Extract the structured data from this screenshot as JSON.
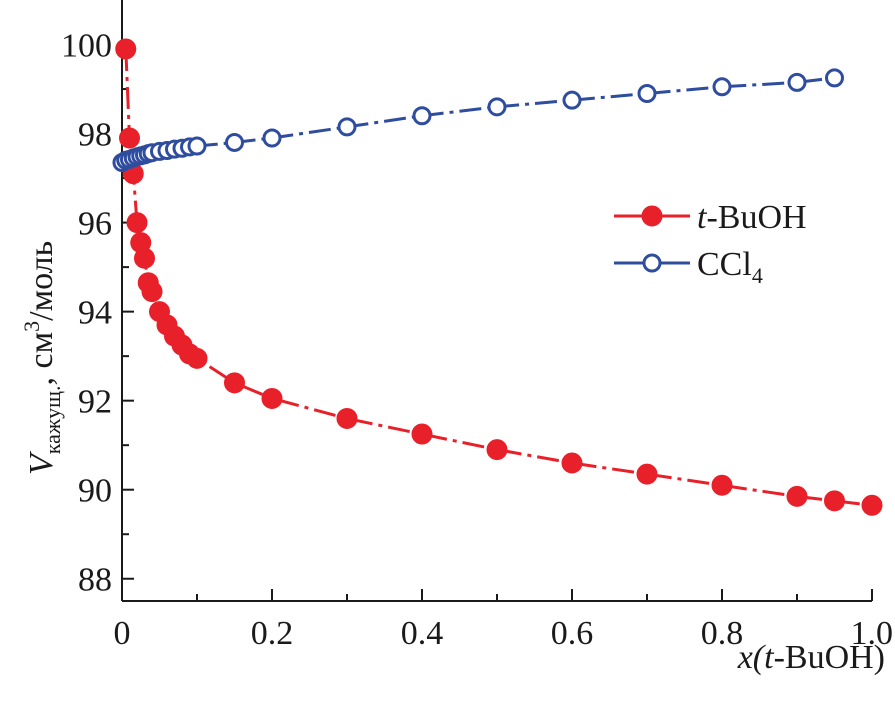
{
  "chart_data": {
    "type": "line",
    "title": "",
    "xlabel": {
      "prefix": "x(",
      "italic": "t",
      "suffix": "-BuOH)"
    },
    "ylabel": {
      "main": "V",
      "sub": "кажущ.",
      "rest": ", см",
      "sup": "3",
      "tail": "/моль"
    },
    "xlim": [
      0,
      1.0
    ],
    "ylim": [
      87.5,
      101
    ],
    "x_ticks": [
      0,
      0.2,
      0.4,
      0.6,
      0.8,
      1.0
    ],
    "x_tick_labels": [
      "0",
      "0.2",
      "0.4",
      "0.6",
      "0.8",
      "1.0"
    ],
    "y_ticks": [
      88,
      90,
      92,
      94,
      96,
      98,
      100
    ],
    "y_tick_labels": [
      "88",
      "90",
      "92",
      "94",
      "96",
      "98",
      "100"
    ],
    "legend_position": "right",
    "series": [
      {
        "name": "t-BuOH",
        "legend": {
          "italic": "t",
          "text": "-BuOH"
        },
        "color": "#e8202a",
        "marker": "filled-circle",
        "x": [
          0.005,
          0.01,
          0.015,
          0.02,
          0.025,
          0.03,
          0.035,
          0.04,
          0.05,
          0.06,
          0.07,
          0.08,
          0.09,
          0.1,
          0.15,
          0.2,
          0.3,
          0.4,
          0.5,
          0.6,
          0.7,
          0.8,
          0.9,
          0.95,
          1.0
        ],
        "y": [
          99.9,
          97.9,
          97.1,
          96.0,
          95.55,
          95.2,
          94.65,
          94.45,
          94.0,
          93.7,
          93.45,
          93.25,
          93.05,
          92.95,
          92.4,
          92.05,
          91.6,
          91.25,
          90.9,
          90.6,
          90.35,
          90.1,
          89.85,
          89.75,
          89.65
        ]
      },
      {
        "name": "CCl4",
        "legend": {
          "text": "CCl",
          "sub": "4"
        },
        "color": "#2f4d9e",
        "marker": "open-circle",
        "x": [
          0.0,
          0.005,
          0.01,
          0.015,
          0.02,
          0.025,
          0.03,
          0.035,
          0.04,
          0.05,
          0.06,
          0.07,
          0.08,
          0.09,
          0.1,
          0.15,
          0.2,
          0.3,
          0.4,
          0.5,
          0.6,
          0.7,
          0.8,
          0.9,
          0.95
        ],
        "y": [
          97.35,
          97.4,
          97.42,
          97.45,
          97.48,
          97.5,
          97.52,
          97.55,
          97.57,
          97.6,
          97.62,
          97.65,
          97.67,
          97.7,
          97.72,
          97.8,
          97.9,
          98.15,
          98.4,
          98.6,
          98.75,
          98.9,
          99.05,
          99.15,
          99.25
        ]
      }
    ]
  }
}
